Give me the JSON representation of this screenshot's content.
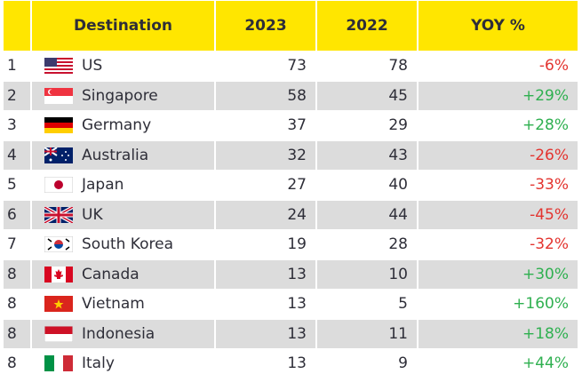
{
  "table": {
    "columns": [
      "Destination",
      "2023",
      "2022",
      "YOY %"
    ],
    "rows": [
      {
        "rank": 1,
        "destination": "US",
        "y2023": 73,
        "y2022": 78,
        "yoy": "-6%"
      },
      {
        "rank": 2,
        "destination": "Singapore",
        "y2023": 58,
        "y2022": 45,
        "yoy": "+29%"
      },
      {
        "rank": 3,
        "destination": "Germany",
        "y2023": 37,
        "y2022": 29,
        "yoy": "+28%"
      },
      {
        "rank": 4,
        "destination": "Australia",
        "y2023": 32,
        "y2022": 43,
        "yoy": "-26%"
      },
      {
        "rank": 5,
        "destination": "Japan",
        "y2023": 27,
        "y2022": 40,
        "yoy": "-33%"
      },
      {
        "rank": 6,
        "destination": "UK",
        "y2023": 24,
        "y2022": 44,
        "yoy": "-45%"
      },
      {
        "rank": 7,
        "destination": "South Korea",
        "y2023": 19,
        "y2022": 28,
        "yoy": "-32%"
      },
      {
        "rank": 8,
        "destination": "Canada",
        "y2023": 13,
        "y2022": 10,
        "yoy": "+30%"
      },
      {
        "rank": 8,
        "destination": "Vietnam",
        "y2023": 13,
        "y2022": 5,
        "yoy": "+160%"
      },
      {
        "rank": 8,
        "destination": "Indonesia",
        "y2023": 13,
        "y2022": 11,
        "yoy": "+18%"
      },
      {
        "rank": 8,
        "destination": "Italy",
        "y2023": 13,
        "y2022": 9,
        "yoy": "+44%"
      }
    ]
  }
}
